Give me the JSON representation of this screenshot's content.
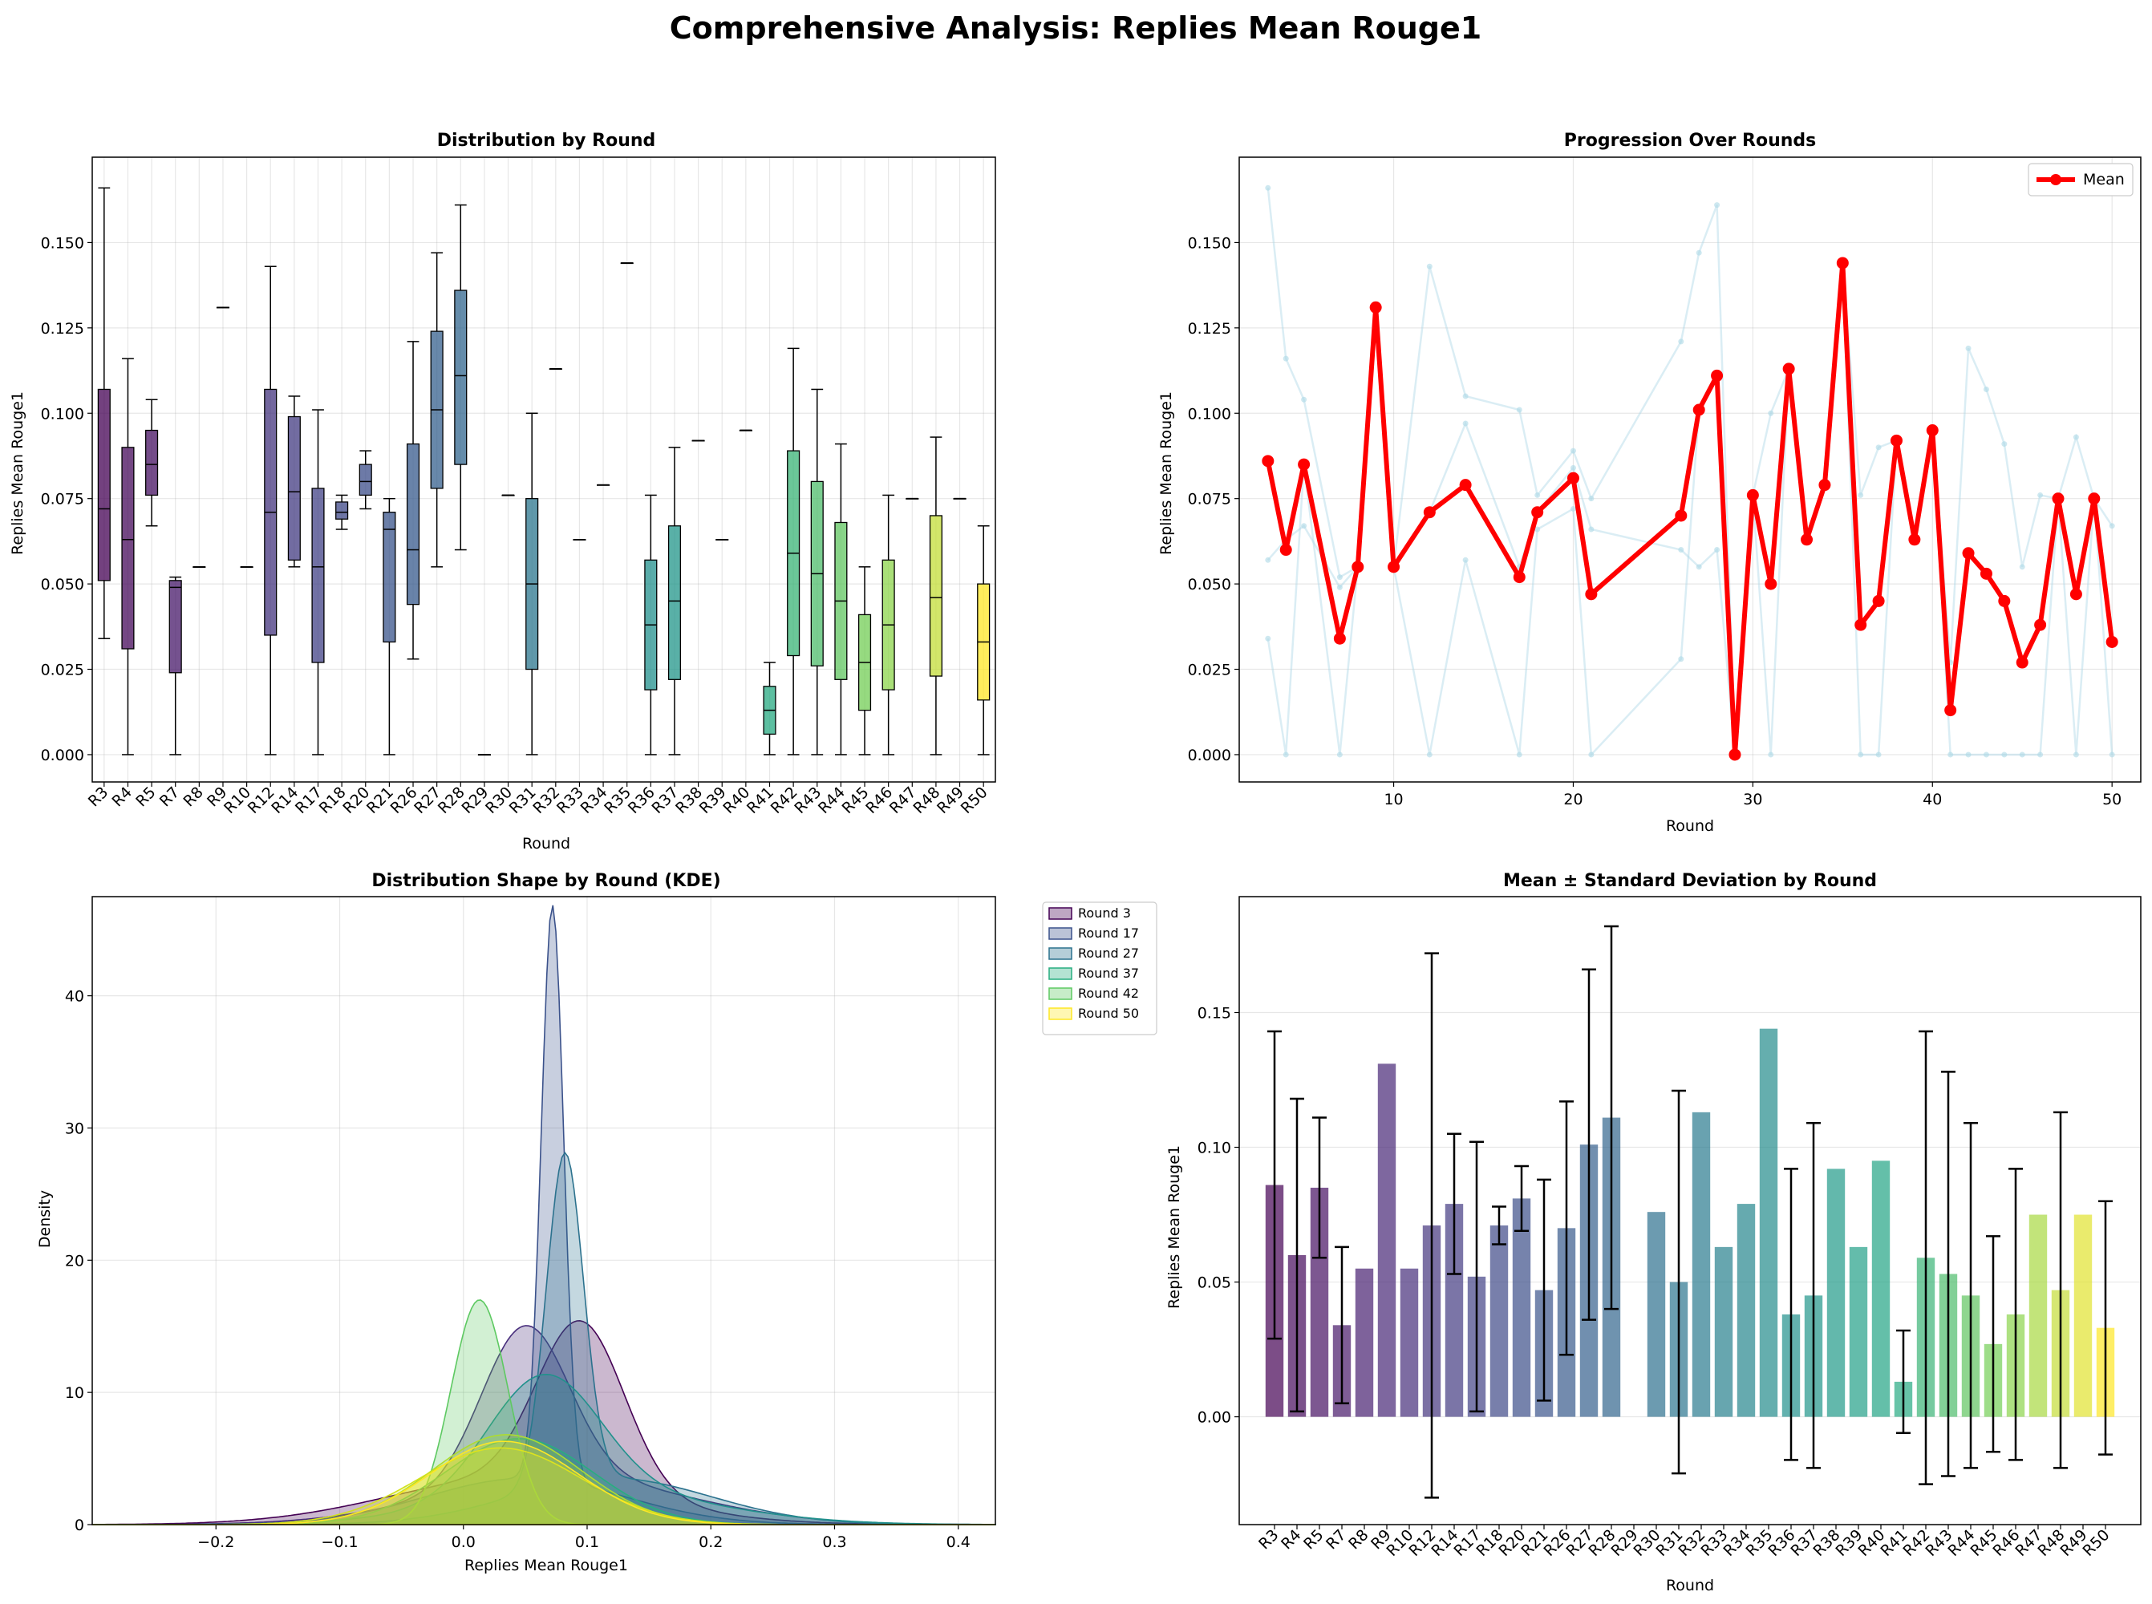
{
  "suptitle": "Comprehensive Analysis: Replies Mean Rouge1",
  "colors": {
    "mean_line": "#ff0000",
    "individual_lines": "#add8e6",
    "edge": "#000000"
  },
  "panels": {
    "box": {
      "title": "Distribution by Round",
      "xlabel": "Round",
      "ylabel": "Replies Mean Rouge1"
    },
    "line": {
      "title": "Progression Over Rounds",
      "xlabel": "Round",
      "ylabel": "Replies Mean Rouge1",
      "legend": "Mean"
    },
    "kde": {
      "title": "Distribution Shape by Round (KDE)",
      "xlabel": "Replies Mean Rouge1",
      "ylabel": "Density"
    },
    "bar": {
      "title": "Mean ± Standard Deviation by Round",
      "xlabel": "Round",
      "ylabel": "Replies Mean Rouge1"
    }
  },
  "chart_data": [
    {
      "type": "box",
      "title": "Distribution by Round",
      "xlabel": "Round",
      "ylabel": "Replies Mean Rouge1",
      "ylim": [
        -0.008,
        0.175
      ],
      "yticks": [
        0.0,
        0.025,
        0.05,
        0.075,
        0.1,
        0.125,
        0.15
      ],
      "grid": true,
      "categories": [
        "R3",
        "R4",
        "R5",
        "R7",
        "R8",
        "R9",
        "R10",
        "R12",
        "R14",
        "R17",
        "R18",
        "R20",
        "R21",
        "R26",
        "R27",
        "R28",
        "R29",
        "R30",
        "R31",
        "R32",
        "R33",
        "R34",
        "R35",
        "R36",
        "R37",
        "R38",
        "R39",
        "R40",
        "R41",
        "R42",
        "R43",
        "R44",
        "R45",
        "R46",
        "R47",
        "R48",
        "R49",
        "R50"
      ],
      "boxes": [
        [
          0.034,
          0.051,
          0.072,
          0.107,
          0.166
        ],
        [
          0.0,
          0.031,
          0.063,
          0.09,
          0.116
        ],
        [
          0.067,
          0.076,
          0.085,
          0.095,
          0.104
        ],
        [
          0.0,
          0.024,
          0.049,
          0.051,
          0.052
        ],
        [
          0.055,
          0.055,
          0.055,
          0.055,
          0.055
        ],
        [
          0.131,
          0.131,
          0.131,
          0.131,
          0.131
        ],
        [
          0.055,
          0.055,
          0.055,
          0.055,
          0.055
        ],
        [
          0.0,
          0.035,
          0.071,
          0.107,
          0.143
        ],
        [
          0.055,
          0.057,
          0.077,
          0.099,
          0.105
        ],
        [
          0.0,
          0.027,
          0.055,
          0.078,
          0.101
        ],
        [
          0.066,
          0.069,
          0.071,
          0.074,
          0.076
        ],
        [
          0.072,
          0.076,
          0.08,
          0.085,
          0.089
        ],
        [
          0.0,
          0.033,
          0.066,
          0.071,
          0.075
        ],
        [
          0.028,
          0.044,
          0.06,
          0.091,
          0.121
        ],
        [
          0.055,
          0.078,
          0.101,
          0.124,
          0.147
        ],
        [
          0.06,
          0.085,
          0.111,
          0.136,
          0.161
        ],
        [
          0.0,
          0.0,
          0.0,
          0.0,
          0.0
        ],
        [
          0.076,
          0.076,
          0.076,
          0.076,
          0.076
        ],
        [
          0.0,
          0.025,
          0.05,
          0.075,
          0.1
        ],
        [
          0.113,
          0.113,
          0.113,
          0.113,
          0.113
        ],
        [
          0.063,
          0.063,
          0.063,
          0.063,
          0.063
        ],
        [
          0.079,
          0.079,
          0.079,
          0.079,
          0.079
        ],
        [
          0.144,
          0.144,
          0.144,
          0.144,
          0.144
        ],
        [
          0.0,
          0.019,
          0.038,
          0.057,
          0.076
        ],
        [
          0.0,
          0.022,
          0.045,
          0.067,
          0.09
        ],
        [
          0.092,
          0.092,
          0.092,
          0.092,
          0.092
        ],
        [
          0.063,
          0.063,
          0.063,
          0.063,
          0.063
        ],
        [
          0.095,
          0.095,
          0.095,
          0.095,
          0.095
        ],
        [
          0.0,
          0.006,
          0.013,
          0.02,
          0.027
        ],
        [
          0.0,
          0.029,
          0.059,
          0.089,
          0.119
        ],
        [
          0.0,
          0.026,
          0.053,
          0.08,
          0.107
        ],
        [
          0.0,
          0.022,
          0.045,
          0.068,
          0.091
        ],
        [
          0.0,
          0.013,
          0.027,
          0.041,
          0.055
        ],
        [
          0.0,
          0.019,
          0.038,
          0.057,
          0.076
        ],
        [
          0.075,
          0.075,
          0.075,
          0.075,
          0.075
        ],
        [
          0.0,
          0.023,
          0.046,
          0.07,
          0.093
        ],
        [
          0.075,
          0.075,
          0.075,
          0.075,
          0.075
        ],
        [
          0.0,
          0.016,
          0.033,
          0.05,
          0.067
        ]
      ]
    },
    {
      "type": "line",
      "title": "Progression Over Rounds",
      "xlabel": "Round",
      "ylabel": "Replies Mean Rouge1",
      "xlim": [
        1.4,
        51.6
      ],
      "ylim": [
        -0.008,
        0.175
      ],
      "xticks": [
        10,
        20,
        30,
        40,
        50
      ],
      "yticks": [
        0.0,
        0.025,
        0.05,
        0.075,
        0.1,
        0.125,
        0.15
      ],
      "legend_position": "top-right",
      "grid": true,
      "x": [
        3,
        4,
        5,
        7,
        8,
        9,
        10,
        12,
        14,
        17,
        18,
        20,
        21,
        26,
        27,
        28,
        29,
        30,
        31,
        32,
        33,
        34,
        35,
        36,
        37,
        38,
        39,
        40,
        41,
        42,
        43,
        44,
        45,
        46,
        47,
        48,
        49,
        50
      ],
      "series": [
        {
          "name": "Mean",
          "values": [
            0.086,
            0.06,
            0.085,
            0.034,
            0.055,
            0.131,
            0.055,
            0.071,
            0.079,
            0.052,
            0.071,
            0.081,
            0.047,
            0.07,
            0.101,
            0.111,
            0.0,
            0.076,
            0.05,
            0.113,
            0.063,
            0.079,
            0.144,
            0.038,
            0.045,
            0.092,
            0.063,
            0.095,
            0.013,
            0.059,
            0.053,
            0.045,
            0.027,
            0.038,
            0.075,
            0.047,
            0.075,
            0.033
          ]
        }
      ],
      "individual": [
        [
          0.166,
          0.116,
          0.104,
          0.052,
          0.055,
          0.131,
          0.055,
          0.143,
          0.105,
          0.101,
          0.076,
          0.089,
          0.075,
          0.121,
          0.147,
          0.161,
          0.0,
          0.076,
          0.1,
          0.113,
          0.063,
          0.079,
          0.144,
          0.076,
          0.09,
          0.092,
          0.063,
          0.095,
          0.027,
          0.119,
          0.107,
          0.091,
          0.055,
          0.076,
          0.075,
          0.093,
          0.075,
          0.067
        ],
        [
          0.057,
          0.063,
          0.067,
          0.049,
          0.055,
          0.131,
          0.055,
          0.071,
          0.097,
          0.055,
          0.071,
          0.084,
          0.066,
          0.06,
          0.055,
          0.06,
          0.0,
          0.076,
          0.05,
          0.113,
          0.063,
          0.079,
          0.144,
          0.038,
          0.045,
          0.092,
          0.063,
          0.095,
          0.013,
          0.059,
          0.053,
          0.045,
          0.027,
          0.038,
          0.075,
          0.047,
          0.075,
          0.033
        ],
        [
          0.034,
          0.0,
          0.085,
          0.0,
          0.055,
          0.131,
          0.055,
          0.0,
          0.057,
          0.0,
          0.066,
          0.072,
          0.0,
          0.028,
          0.101,
          0.111,
          0.0,
          0.076,
          0.0,
          0.113,
          0.063,
          0.079,
          0.144,
          0.0,
          0.0,
          0.092,
          0.063,
          0.095,
          0.0,
          0.0,
          0.0,
          0.0,
          0.0,
          0.0,
          0.075,
          0.0,
          0.075,
          0.0
        ]
      ]
    },
    {
      "type": "area",
      "title": "Distribution Shape by Round (KDE)",
      "xlabel": "Replies Mean Rouge1",
      "ylabel": "Density",
      "xlim": [
        -0.3,
        0.43
      ],
      "ylim": [
        0,
        47.5
      ],
      "xticks": [
        -0.2,
        -0.1,
        0.0,
        0.1,
        0.2,
        0.3,
        0.4
      ],
      "yticks": [
        0,
        10,
        20,
        30,
        40
      ],
      "legend_position": "outside-right",
      "grid": true,
      "legend_series": [
        {
          "name": "Round 3",
          "color": "#440154"
        },
        {
          "name": "Round 17",
          "color": "#3b528b"
        },
        {
          "name": "Round 27",
          "color": "#2c728e"
        },
        {
          "name": "Round 37",
          "color": "#28ae80"
        },
        {
          "name": "Round 42",
          "color": "#5ec962"
        },
        {
          "name": "Round 50",
          "color": "#fde725"
        }
      ],
      "curves": [
        {
          "components": [
            {
              "mu": 0.095,
              "sigma": 0.035,
              "peak": 12.4
            },
            {
              "mu": 0.04,
              "sigma": 0.1,
              "peak": 3.5
            }
          ],
          "color": "#440154"
        },
        {
          "components": [
            {
              "mu": 0.05,
              "sigma": 0.035,
              "peak": 11.7
            },
            {
              "mu": 0.08,
              "sigma": 0.1,
              "peak": 3.5
            }
          ],
          "color": "#472d7b"
        },
        {
          "components": [
            {
              "mu": 0.072,
              "sigma": 0.009,
              "peak": 43.5
            },
            {
              "mu": 0.05,
              "sigma": 0.08,
              "peak": 3.5
            }
          ],
          "color": "#3b528b"
        },
        {
          "components": [
            {
              "mu": 0.082,
              "sigma": 0.015,
              "peak": 25.0
            },
            {
              "mu": 0.12,
              "sigma": 0.08,
              "peak": 3.5
            }
          ],
          "color": "#2c728e"
        },
        {
          "components": [
            {
              "mu": 0.065,
              "sigma": 0.045,
              "peak": 9.0
            },
            {
              "mu": 0.1,
              "sigma": 0.1,
              "peak": 2.5
            }
          ],
          "color": "#21918c"
        },
        {
          "components": [
            {
              "mu": 0.045,
              "sigma": 0.06,
              "peak": 6.5
            }
          ],
          "color": "#28ae80"
        },
        {
          "components": [
            {
              "mu": 0.013,
              "sigma": 0.023,
              "peak": 17.0
            }
          ],
          "color": "#5ec962"
        },
        {
          "components": [
            {
              "mu": 0.035,
              "sigma": 0.06,
              "peak": 6.8
            }
          ],
          "color": "#addc30"
        },
        {
          "components": [
            {
              "mu": 0.03,
              "sigma": 0.065,
              "peak": 5.8
            }
          ],
          "color": "#d2e21b"
        },
        {
          "components": [
            {
              "mu": 0.033,
              "sigma": 0.06,
              "peak": 6.3
            }
          ],
          "color": "#fde725"
        }
      ]
    },
    {
      "type": "bar",
      "title": "Mean ± Standard Deviation by Round",
      "xlabel": "Round",
      "ylabel": "Replies Mean Rouge1",
      "ylim": [
        -0.04,
        0.193
      ],
      "yticks": [
        0.0,
        0.05,
        0.1,
        0.15
      ],
      "grid": true,
      "categories": [
        "R3",
        "R4",
        "R5",
        "R7",
        "R8",
        "R9",
        "R10",
        "R12",
        "R14",
        "R17",
        "R18",
        "R20",
        "R21",
        "R26",
        "R27",
        "R28",
        "R29",
        "R30",
        "R31",
        "R32",
        "R33",
        "R34",
        "R35",
        "R36",
        "R37",
        "R38",
        "R39",
        "R40",
        "R41",
        "R42",
        "R43",
        "R44",
        "R45",
        "R46",
        "R47",
        "R48",
        "R49",
        "R50"
      ],
      "values": [
        0.086,
        0.06,
        0.085,
        0.034,
        0.055,
        0.131,
        0.055,
        0.071,
        0.079,
        0.052,
        0.071,
        0.081,
        0.047,
        0.07,
        0.101,
        0.111,
        0.0,
        0.076,
        0.05,
        0.113,
        0.063,
        0.079,
        0.144,
        0.038,
        0.045,
        0.092,
        0.063,
        0.095,
        0.013,
        0.059,
        0.053,
        0.045,
        0.027,
        0.038,
        0.075,
        0.047,
        0.075,
        0.033
      ],
      "errors": [
        0.057,
        0.058,
        0.026,
        0.029,
        null,
        null,
        null,
        0.101,
        0.026,
        0.05,
        0.007,
        0.012,
        0.041,
        0.047,
        0.065,
        0.071,
        null,
        null,
        0.071,
        null,
        null,
        null,
        null,
        0.054,
        0.064,
        null,
        null,
        null,
        0.019,
        0.084,
        0.075,
        0.064,
        0.04,
        0.054,
        null,
        0.066,
        null,
        0.047
      ]
    }
  ]
}
